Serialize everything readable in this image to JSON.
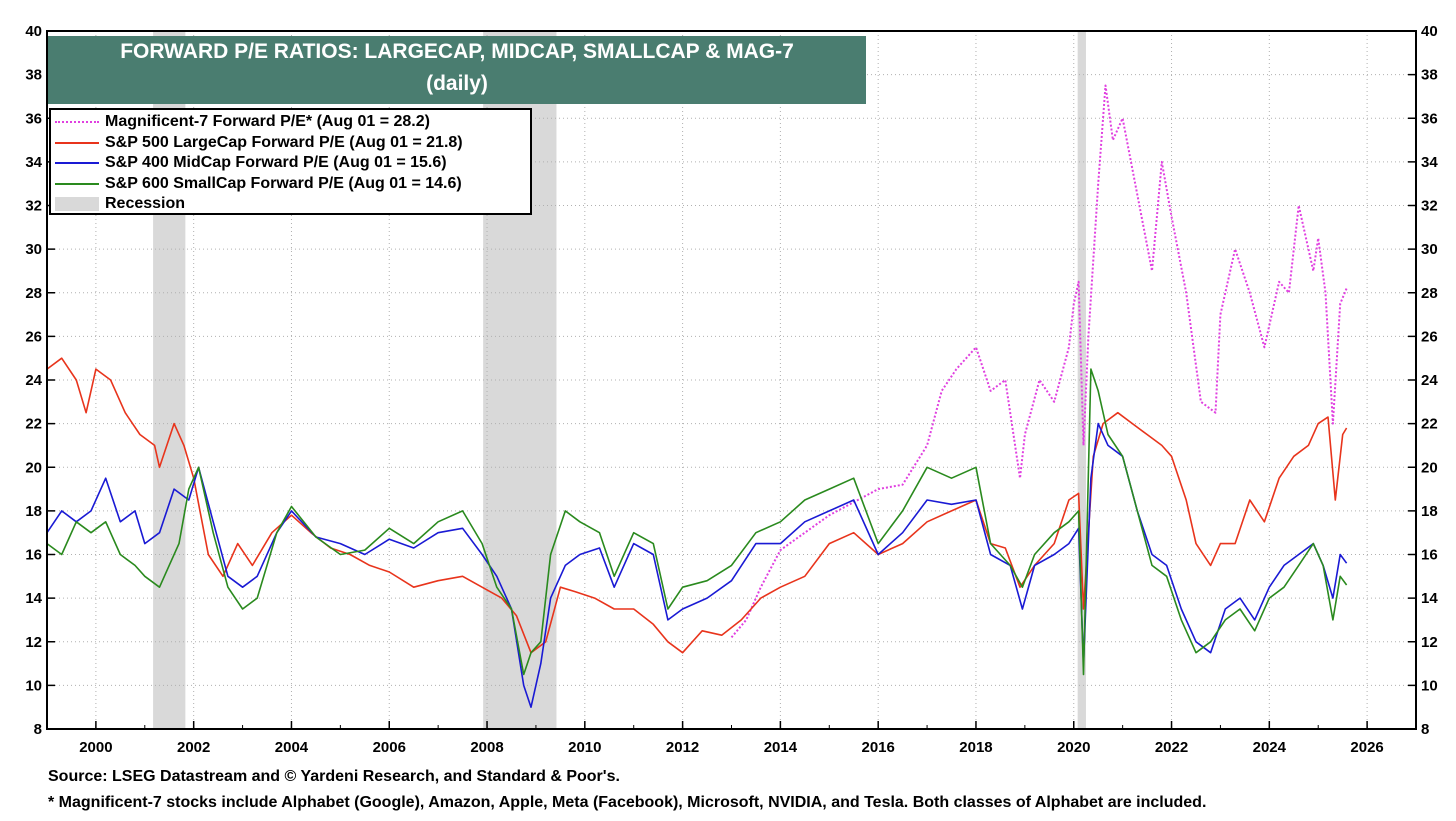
{
  "chart_data": {
    "type": "line",
    "title": "FORWARD P/E RATIOS: LARGECAP, MIDCAP, SMALLCAP & MAG-7",
    "subtitle": "(daily)",
    "xlim": [
      1999.0,
      2027.0
    ],
    "ylim": [
      8,
      40
    ],
    "x_ticks": [
      "2000",
      "2002",
      "2004",
      "2006",
      "2008",
      "2010",
      "2012",
      "2014",
      "2016",
      "2018",
      "2020",
      "2022",
      "2024",
      "2026"
    ],
    "y_ticks": [
      "8",
      "10",
      "12",
      "14",
      "16",
      "18",
      "20",
      "22",
      "24",
      "26",
      "28",
      "30",
      "32",
      "34",
      "36",
      "38",
      "40"
    ],
    "grid": true,
    "legend_position": "top-left",
    "series": [
      {
        "name": "Magnificent-7 Forward P/E* (Aug 01 = 28.2)",
        "color": "#e040e0",
        "style": "dotted",
        "x": [
          2013.0,
          2013.3,
          2013.6,
          2014.0,
          2014.5,
          2015.0,
          2015.5,
          2016.0,
          2016.5,
          2017.0,
          2017.3,
          2017.6,
          2018.0,
          2018.3,
          2018.6,
          2018.9,
          2019.0,
          2019.3,
          2019.6,
          2019.9,
          2020.0,
          2020.1,
          2020.2,
          2020.3,
          2020.5,
          2020.65,
          2020.8,
          2021.0,
          2021.3,
          2021.6,
          2021.8,
          2022.0,
          2022.3,
          2022.6,
          2022.9,
          2023.0,
          2023.3,
          2023.6,
          2023.9,
          2024.2,
          2024.4,
          2024.6,
          2024.9,
          2025.0,
          2025.15,
          2025.3,
          2025.45,
          2025.58
        ],
        "y": [
          12.2,
          13.0,
          14.5,
          16.2,
          17.0,
          17.8,
          18.4,
          19.0,
          19.2,
          21.0,
          23.5,
          24.5,
          25.5,
          23.5,
          24.0,
          19.5,
          21.5,
          24.0,
          23.0,
          25.5,
          27.5,
          28.5,
          21.0,
          26.0,
          33.0,
          37.5,
          35.0,
          36.0,
          32.5,
          29.0,
          34.0,
          31.5,
          28.0,
          23.0,
          22.5,
          27.0,
          30.0,
          28.0,
          25.5,
          28.5,
          28.0,
          32.0,
          29.0,
          30.5,
          28.0,
          22.0,
          27.5,
          28.2
        ]
      },
      {
        "name": "S&P 500 LargeCap Forward P/E (Aug 01 = 21.8)",
        "color": "#e8341c",
        "style": "solid",
        "x": [
          1999.0,
          1999.3,
          1999.6,
          1999.8,
          2000.0,
          2000.3,
          2000.6,
          2000.9,
          2001.2,
          2001.3,
          2001.6,
          2001.8,
          2002.0,
          2002.3,
          2002.6,
          2002.9,
          2003.2,
          2003.6,
          2004.0,
          2004.4,
          2004.8,
          2005.2,
          2005.6,
          2006.0,
          2006.5,
          2007.0,
          2007.5,
          2007.9,
          2008.3,
          2008.6,
          2008.9,
          2009.2,
          2009.5,
          2009.8,
          2010.2,
          2010.6,
          2011.0,
          2011.4,
          2011.7,
          2012.0,
          2012.4,
          2012.8,
          2013.2,
          2013.6,
          2014.0,
          2014.5,
          2015.0,
          2015.5,
          2016.0,
          2016.5,
          2017.0,
          2017.5,
          2018.0,
          2018.3,
          2018.6,
          2018.9,
          2019.2,
          2019.6,
          2019.9,
          2020.1,
          2020.2,
          2020.4,
          2020.6,
          2020.9,
          2021.2,
          2021.5,
          2021.8,
          2022.0,
          2022.3,
          2022.5,
          2022.8,
          2023.0,
          2023.3,
          2023.6,
          2023.9,
          2024.2,
          2024.5,
          2024.8,
          2025.0,
          2025.2,
          2025.35,
          2025.5,
          2025.58
        ],
        "y": [
          24.5,
          25.0,
          24.0,
          22.5,
          24.5,
          24.0,
          22.5,
          21.5,
          21.0,
          20.0,
          22.0,
          21.0,
          19.5,
          16.0,
          15.0,
          16.5,
          15.5,
          17.0,
          17.8,
          17.0,
          16.3,
          16.0,
          15.5,
          15.2,
          14.5,
          14.8,
          15.0,
          14.5,
          14.0,
          13.2,
          11.5,
          12.0,
          14.5,
          14.3,
          14.0,
          13.5,
          13.5,
          12.8,
          12.0,
          11.5,
          12.5,
          12.3,
          13.0,
          14.0,
          14.5,
          15.0,
          16.5,
          17.0,
          16.0,
          16.5,
          17.5,
          18.0,
          18.5,
          16.5,
          16.3,
          14.5,
          15.5,
          16.5,
          18.5,
          18.8,
          13.5,
          20.5,
          22.0,
          22.5,
          22.0,
          21.5,
          21.0,
          20.5,
          18.5,
          16.5,
          15.5,
          16.5,
          16.5,
          18.5,
          17.5,
          19.5,
          20.5,
          21.0,
          22.0,
          22.3,
          18.5,
          21.5,
          21.8
        ]
      },
      {
        "name": "S&P 400 MidCap Forward P/E (Aug 01 = 15.6)",
        "color": "#1a1ad4",
        "style": "solid",
        "x": [
          1999.0,
          1999.3,
          1999.6,
          1999.9,
          2000.2,
          2000.5,
          2000.8,
          2001.0,
          2001.3,
          2001.6,
          2001.9,
          2002.1,
          2002.4,
          2002.7,
          2003.0,
          2003.3,
          2003.7,
          2004.0,
          2004.5,
          2005.0,
          2005.5,
          2006.0,
          2006.5,
          2007.0,
          2007.5,
          2007.9,
          2008.2,
          2008.5,
          2008.75,
          2008.9,
          2009.1,
          2009.3,
          2009.6,
          2009.9,
          2010.3,
          2010.6,
          2011.0,
          2011.4,
          2011.7,
          2012.0,
          2012.5,
          2013.0,
          2013.5,
          2014.0,
          2014.5,
          2015.0,
          2015.5,
          2016.0,
          2016.5,
          2017.0,
          2017.5,
          2018.0,
          2018.3,
          2018.7,
          2018.95,
          2019.2,
          2019.6,
          2019.9,
          2020.1,
          2020.2,
          2020.35,
          2020.5,
          2020.7,
          2021.0,
          2021.3,
          2021.6,
          2021.9,
          2022.2,
          2022.5,
          2022.8,
          2023.1,
          2023.4,
          2023.7,
          2024.0,
          2024.3,
          2024.6,
          2024.9,
          2025.1,
          2025.3,
          2025.45,
          2025.58
        ],
        "y": [
          17.0,
          18.0,
          17.5,
          18.0,
          19.5,
          17.5,
          18.0,
          16.5,
          17.0,
          19.0,
          18.5,
          20.0,
          17.5,
          15.0,
          14.5,
          15.0,
          17.0,
          18.0,
          16.8,
          16.5,
          16.0,
          16.7,
          16.3,
          17.0,
          17.2,
          16.0,
          15.0,
          13.5,
          10.0,
          9.0,
          11.0,
          14.0,
          15.5,
          16.0,
          16.3,
          14.5,
          16.5,
          16.0,
          13.0,
          13.5,
          14.0,
          14.8,
          16.5,
          16.5,
          17.5,
          18.0,
          18.5,
          16.0,
          17.0,
          18.5,
          18.3,
          18.5,
          16.0,
          15.5,
          13.5,
          15.5,
          16.0,
          16.5,
          17.2,
          11.0,
          19.5,
          22.0,
          21.0,
          20.5,
          18.0,
          16.0,
          15.5,
          13.5,
          12.0,
          11.5,
          13.5,
          14.0,
          13.0,
          14.5,
          15.5,
          16.0,
          16.5,
          15.5,
          14.0,
          16.0,
          15.6
        ]
      },
      {
        "name": "S&P 600 SmallCap Forward P/E (Aug 01 = 14.6)",
        "color": "#2a8a1e",
        "style": "solid",
        "x": [
          1999.0,
          1999.3,
          1999.6,
          1999.9,
          2000.2,
          2000.5,
          2000.8,
          2001.0,
          2001.3,
          2001.5,
          2001.7,
          2001.9,
          2002.1,
          2002.4,
          2002.7,
          2003.0,
          2003.3,
          2003.7,
          2004.0,
          2004.5,
          2005.0,
          2005.5,
          2006.0,
          2006.5,
          2007.0,
          2007.5,
          2007.9,
          2008.2,
          2008.5,
          2008.75,
          2008.9,
          2009.1,
          2009.3,
          2009.6,
          2009.9,
          2010.3,
          2010.6,
          2011.0,
          2011.4,
          2011.7,
          2012.0,
          2012.5,
          2013.0,
          2013.5,
          2014.0,
          2014.5,
          2015.0,
          2015.5,
          2016.0,
          2016.5,
          2017.0,
          2017.5,
          2018.0,
          2018.3,
          2018.7,
          2018.95,
          2019.2,
          2019.6,
          2019.9,
          2020.1,
          2020.2,
          2020.35,
          2020.5,
          2020.7,
          2021.0,
          2021.3,
          2021.6,
          2021.9,
          2022.2,
          2022.5,
          2022.8,
          2023.1,
          2023.4,
          2023.7,
          2024.0,
          2024.3,
          2024.6,
          2024.9,
          2025.1,
          2025.3,
          2025.45,
          2025.58
        ],
        "y": [
          16.5,
          16.0,
          17.5,
          17.0,
          17.5,
          16.0,
          15.5,
          15.0,
          14.5,
          15.5,
          16.5,
          19.0,
          20.0,
          17.0,
          14.5,
          13.5,
          14.0,
          17.0,
          18.2,
          16.8,
          16.0,
          16.2,
          17.2,
          16.5,
          17.5,
          18.0,
          16.5,
          14.5,
          13.5,
          10.5,
          11.5,
          12.0,
          16.0,
          18.0,
          17.5,
          17.0,
          15.0,
          17.0,
          16.5,
          13.5,
          14.5,
          14.8,
          15.5,
          17.0,
          17.5,
          18.5,
          19.0,
          19.5,
          16.5,
          18.0,
          20.0,
          19.5,
          20.0,
          16.5,
          15.5,
          14.5,
          16.0,
          17.0,
          17.5,
          18.0,
          10.5,
          24.5,
          23.5,
          21.5,
          20.5,
          18.0,
          15.5,
          15.0,
          13.0,
          11.5,
          12.0,
          13.0,
          13.5,
          12.5,
          14.0,
          14.5,
          15.5,
          16.5,
          15.5,
          13.0,
          15.0,
          14.6
        ]
      }
    ],
    "recessions": [
      [
        2001.17,
        2001.83
      ],
      [
        2007.92,
        2009.42
      ],
      [
        2020.08,
        2020.25
      ]
    ],
    "recession_label": "Recession"
  },
  "footnotes": {
    "source": "Source: LSEG Datastream and © Yardeni Research, and Standard & Poor's.",
    "note": "* Magnificent-7 stocks include Alphabet (Google), Amazon, Apple, Meta (Facebook), Microsoft, NVIDIA, and Tesla. Both classes of Alphabet are included."
  }
}
